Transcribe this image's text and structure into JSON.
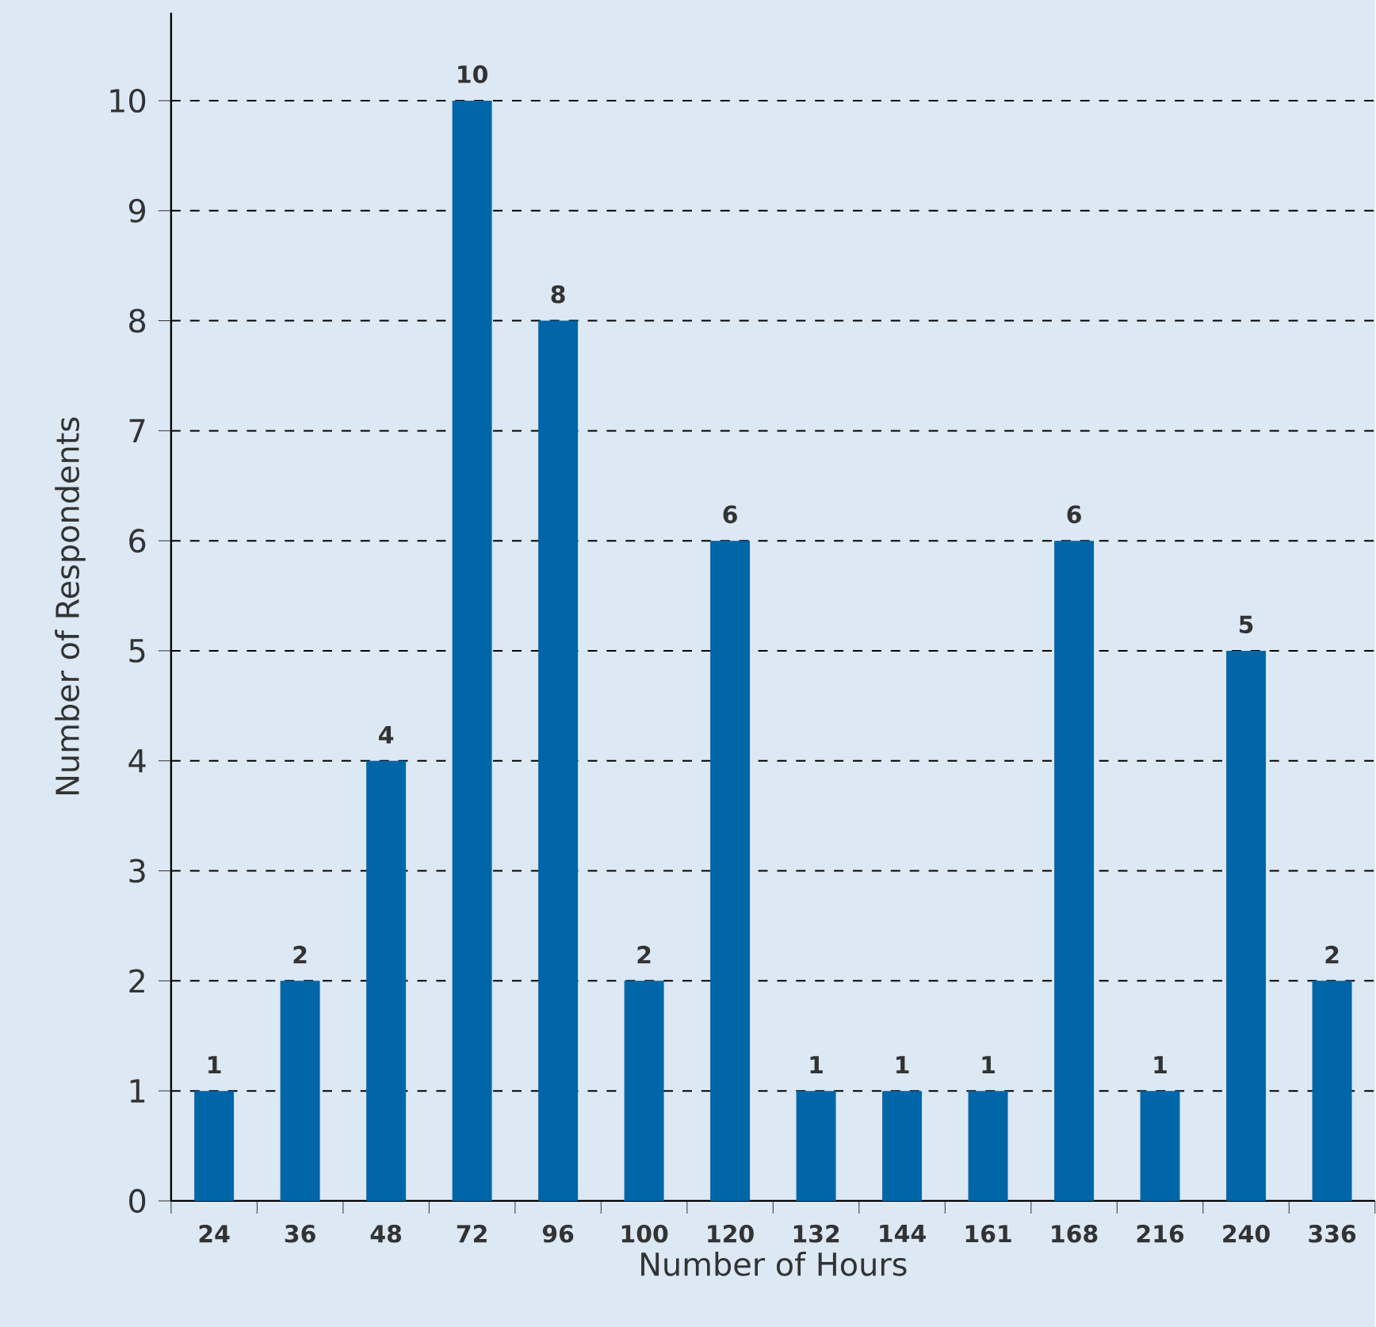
{
  "chart_data": {
    "type": "bar",
    "xlabel": "Number of Hours",
    "ylabel": "Number of Respondents",
    "categories": [
      "24",
      "36",
      "48",
      "72",
      "96",
      "100",
      "120",
      "132",
      "144",
      "161",
      "168",
      "216",
      "240",
      "336"
    ],
    "values": [
      1,
      2,
      4,
      10,
      8,
      2,
      6,
      1,
      1,
      1,
      6,
      1,
      5,
      2
    ],
    "color": "#0066a8",
    "ylim": [
      0,
      10.8
    ],
    "yticks": [
      0,
      1,
      2,
      3,
      4,
      5,
      6,
      7,
      8,
      9,
      10
    ],
    "grid": "y",
    "data_labels": true
  }
}
